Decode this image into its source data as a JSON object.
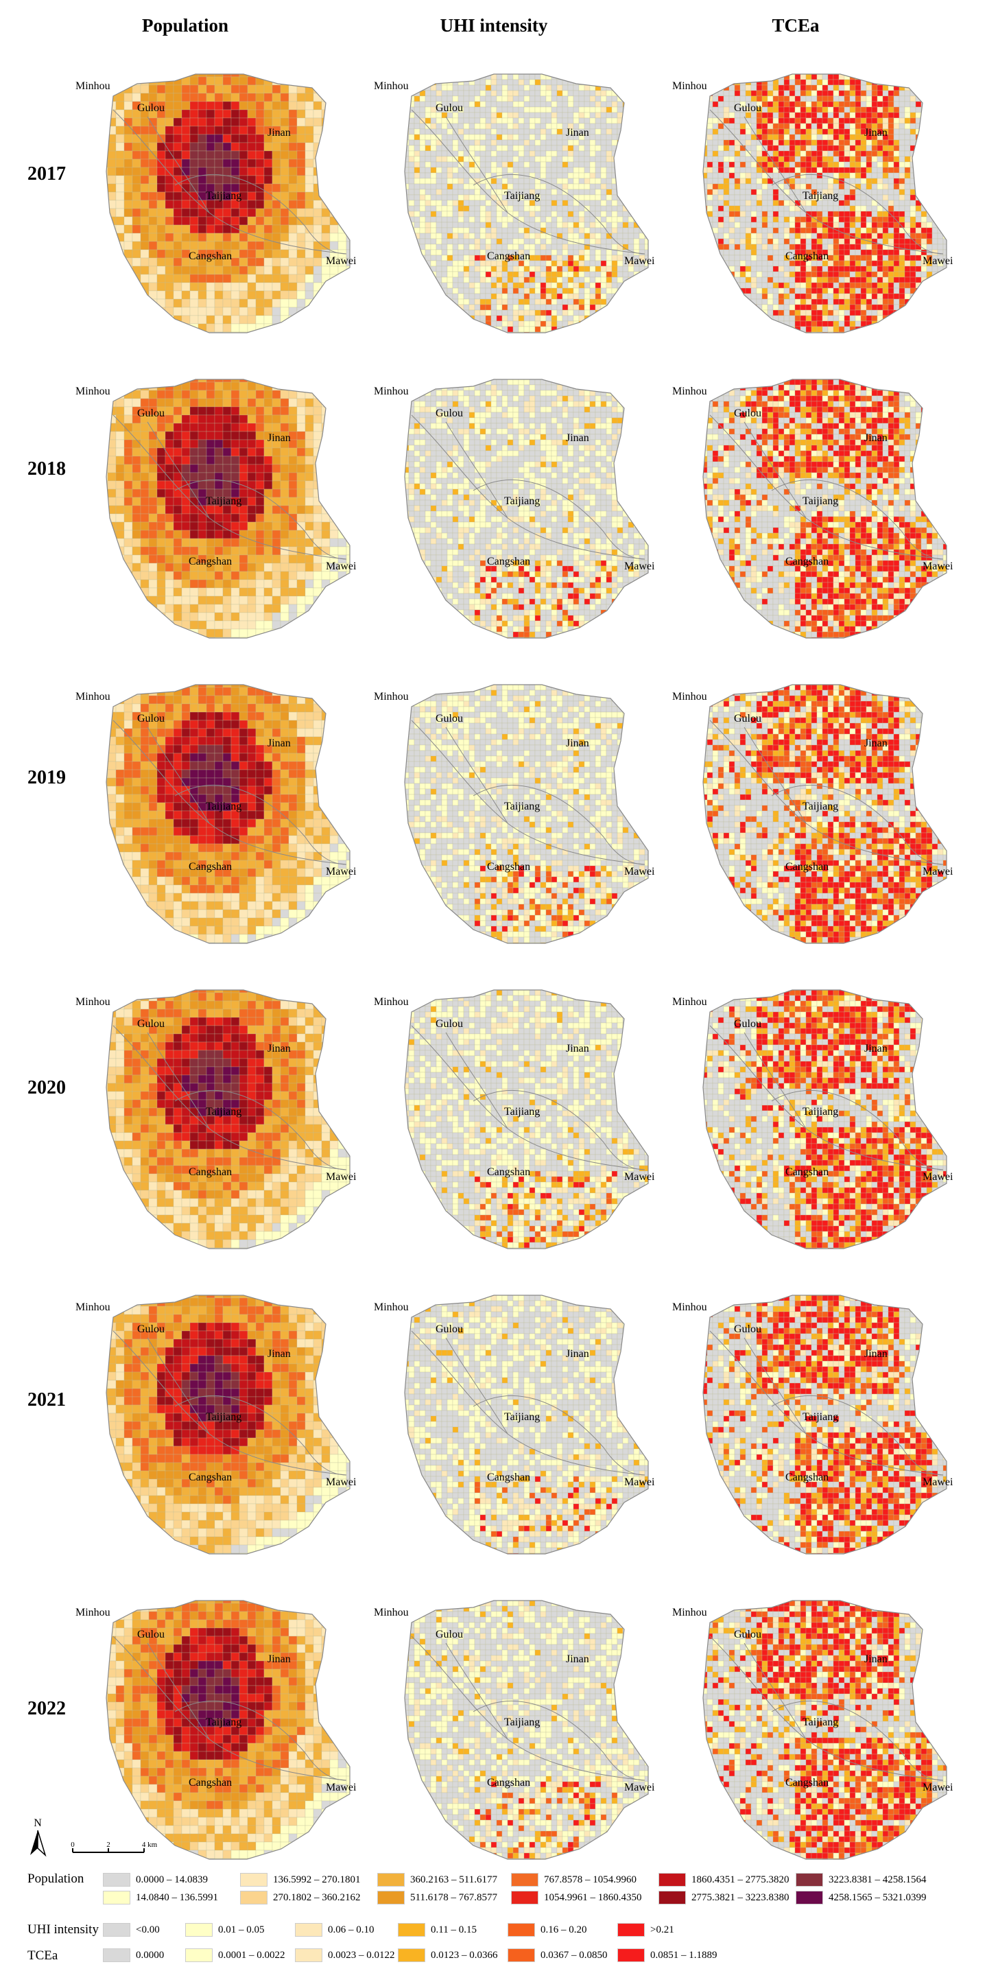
{
  "headers": [
    "Population",
    "UHI intensity",
    "TCEa"
  ],
  "years": [
    "2017",
    "2018",
    "2019",
    "2020",
    "2021",
    "2022"
  ],
  "districts": [
    "Minhou",
    "Gulou",
    "Jinan",
    "Taijiang",
    "Cangshan",
    "Mawei"
  ],
  "north_arrow": "N",
  "scale_bar": {
    "ticks": [
      "0",
      "2",
      "4 km"
    ]
  },
  "legends": {
    "population": {
      "title": "Population",
      "classes": [
        {
          "label": "0.0000 – 14.0839",
          "color": "#d9d9d9"
        },
        {
          "label": "14.0840 – 136.5991",
          "color": "#ffffc6"
        },
        {
          "label": "136.5992 – 270.1801",
          "color": "#fde8b9"
        },
        {
          "label": "270.1802 – 360.2162",
          "color": "#fbd48e"
        },
        {
          "label": "360.2163 – 511.6177",
          "color": "#f2b13c"
        },
        {
          "label": "511.6178 – 767.8577",
          "color": "#e99a25"
        },
        {
          "label": "767.8578 – 1054.9960",
          "color": "#f26b25"
        },
        {
          "label": "1054.9961 – 1860.4350",
          "color": "#e8241b"
        },
        {
          "label": "1860.4351 – 2775.3820",
          "color": "#c4141a"
        },
        {
          "label": "2775.3821 – 3223.8380",
          "color": "#9c0f19"
        },
        {
          "label": "3223.8381 – 4258.1564",
          "color": "#87303c"
        },
        {
          "label": "4258.1565 – 5321.0399",
          "color": "#6c0a4b"
        }
      ]
    },
    "uhi": {
      "title": "UHI intensity",
      "classes": [
        {
          "label": "<0.00",
          "color": "#d9d9d9"
        },
        {
          "label": "0.01 – 0.05",
          "color": "#ffffc6"
        },
        {
          "label": "0.06 – 0.10",
          "color": "#fde8b9"
        },
        {
          "label": "0.11 – 0.15",
          "color": "#f9b322"
        },
        {
          "label": "0.16 – 0.20",
          "color": "#f6611d"
        },
        {
          "label": ">0.21",
          "color": "#f61c1c"
        }
      ]
    },
    "tcea": {
      "title": "TCEa",
      "classes": [
        {
          "label": "0.0000",
          "color": "#d9d9d9"
        },
        {
          "label": "0.0001 – 0.0022",
          "color": "#ffffc6"
        },
        {
          "label": "0.0023 – 0.0122",
          "color": "#fde8b9"
        },
        {
          "label": "0.0123 – 0.0366",
          "color": "#f9b322"
        },
        {
          "label": "0.0367 – 0.0850",
          "color": "#f6611d"
        },
        {
          "label": "0.0851 – 1.1889",
          "color": "#f61c1c"
        }
      ]
    }
  }
}
